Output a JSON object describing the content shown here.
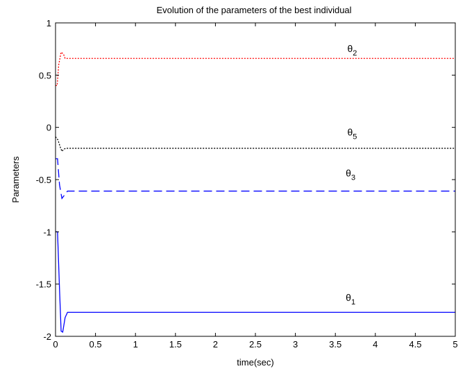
{
  "chart_data": {
    "type": "line",
    "title": "Evolution of the parameters of the best individual",
    "xlabel": "time(sec)",
    "ylabel": "Parameters",
    "xlim": [
      0,
      5
    ],
    "ylim": [
      -2,
      1
    ],
    "x_ticks": [
      0,
      0.5,
      1,
      1.5,
      2,
      2.5,
      3,
      3.5,
      4,
      4.5,
      5
    ],
    "x_tick_labels": [
      "0",
      "0.5",
      "1",
      "1.5",
      "2",
      "2.5",
      "3",
      "3.5",
      "4",
      "4.5",
      "5"
    ],
    "y_ticks": [
      -2,
      -1.5,
      -1,
      -0.5,
      0,
      0.5,
      1
    ],
    "y_tick_labels": [
      "-2",
      "-1.5",
      "-1",
      "-0.5",
      "0",
      "0.5",
      "1"
    ],
    "grid": false,
    "legend": "none (inline labels)",
    "series": [
      {
        "name": "θ2",
        "label_base": "θ",
        "label_sub": "2",
        "color": "#ff0000",
        "style": "dotted",
        "label_at": [
          3.65,
          0.72
        ],
        "points": [
          [
            0,
            0.4
          ],
          [
            0.02,
            0.4
          ],
          [
            0.04,
            0.6
          ],
          [
            0.07,
            0.72
          ],
          [
            0.1,
            0.7
          ],
          [
            0.12,
            0.66
          ],
          [
            5,
            0.66
          ]
        ]
      },
      {
        "name": "θ5",
        "label_base": "θ",
        "label_sub": "5",
        "color": "#000000",
        "style": "dotted",
        "label_at": [
          3.65,
          -0.08
        ],
        "points": [
          [
            0,
            -0.09
          ],
          [
            0.03,
            -0.12
          ],
          [
            0.06,
            -0.19
          ],
          [
            0.08,
            -0.23
          ],
          [
            0.1,
            -0.21
          ],
          [
            0.13,
            -0.2
          ],
          [
            5,
            -0.2
          ]
        ]
      },
      {
        "name": "θ3",
        "label_base": "θ",
        "label_sub": "3",
        "color": "#0000ff",
        "style": "dashed",
        "label_at": [
          3.63,
          -0.47
        ],
        "points": [
          [
            0,
            -0.3
          ],
          [
            0.025,
            -0.3
          ],
          [
            0.05,
            -0.55
          ],
          [
            0.08,
            -0.68
          ],
          [
            0.11,
            -0.65
          ],
          [
            0.15,
            -0.61
          ],
          [
            5,
            -0.61
          ]
        ]
      },
      {
        "name": "θ1",
        "label_base": "θ",
        "label_sub": "1",
        "color": "#0000ff",
        "style": "solid",
        "label_at": [
          3.63,
          -1.66
        ],
        "points": [
          [
            0,
            -1.0
          ],
          [
            0.025,
            -1.0
          ],
          [
            0.05,
            -1.55
          ],
          [
            0.07,
            -1.95
          ],
          [
            0.09,
            -1.96
          ],
          [
            0.12,
            -1.82
          ],
          [
            0.15,
            -1.77
          ],
          [
            5,
            -1.77
          ]
        ]
      }
    ]
  }
}
